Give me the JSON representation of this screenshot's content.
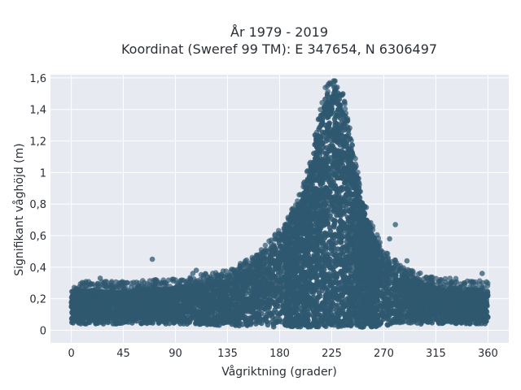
{
  "chart_data": {
    "type": "scatter",
    "title": "År 1979 - 2019",
    "subtitle": "Koordinat (Sweref 99 TM): E 347654, N 6306497",
    "xlabel": "Vågriktning (grader)",
    "ylabel": "Signifikant våghöjd (m)",
    "xlim": [
      -18,
      378
    ],
    "ylim": [
      -0.08,
      1.62
    ],
    "xticks": [
      0,
      45,
      90,
      135,
      180,
      225,
      270,
      315,
      360
    ],
    "xtick_labels": [
      "0",
      "45",
      "90",
      "135",
      "180",
      "225",
      "270",
      "315",
      "360"
    ],
    "yticks": [
      0,
      0.2,
      0.4,
      0.6,
      0.8,
      1,
      1.2,
      1.4,
      1.6
    ],
    "ytick_labels": [
      "0",
      "0,2",
      "0,4",
      "0,6",
      "0,8",
      "1",
      "1,2",
      "1,4",
      "1,6"
    ],
    "grid": true,
    "point_color": "#2f5870",
    "background_color": "#e8eaf2",
    "envelope": {
      "x": [
        0,
        45,
        90,
        135,
        160,
        180,
        195,
        205,
        215,
        220,
        225,
        230,
        235,
        240,
        250,
        260,
        270,
        290,
        315,
        360
      ],
      "y_upper": [
        0.25,
        0.25,
        0.27,
        0.32,
        0.42,
        0.58,
        0.76,
        0.98,
        1.35,
        1.5,
        1.53,
        1.52,
        1.45,
        1.25,
        0.85,
        0.62,
        0.45,
        0.33,
        0.28,
        0.25
      ],
      "y_lower": [
        0.04,
        0.04,
        0.04,
        0.03,
        0.02,
        0.02,
        0.02,
        0.02,
        0.02,
        0.02,
        0.02,
        0.02,
        0.02,
        0.02,
        0.02,
        0.02,
        0.03,
        0.04,
        0.04,
        0.04
      ]
    },
    "outliers": [
      {
        "x": 70,
        "y": 0.45
      },
      {
        "x": 108,
        "y": 0.38
      },
      {
        "x": 105,
        "y": 0.36
      },
      {
        "x": 280,
        "y": 0.67
      },
      {
        "x": 275,
        "y": 0.58
      },
      {
        "x": 25,
        "y": 0.33
      },
      {
        "x": 355,
        "y": 0.36
      },
      {
        "x": 340,
        "y": 0.29
      },
      {
        "x": 48,
        "y": 0.3
      },
      {
        "x": 130,
        "y": 0.34
      },
      {
        "x": 150,
        "y": 0.41
      },
      {
        "x": 290,
        "y": 0.44
      }
    ]
  }
}
